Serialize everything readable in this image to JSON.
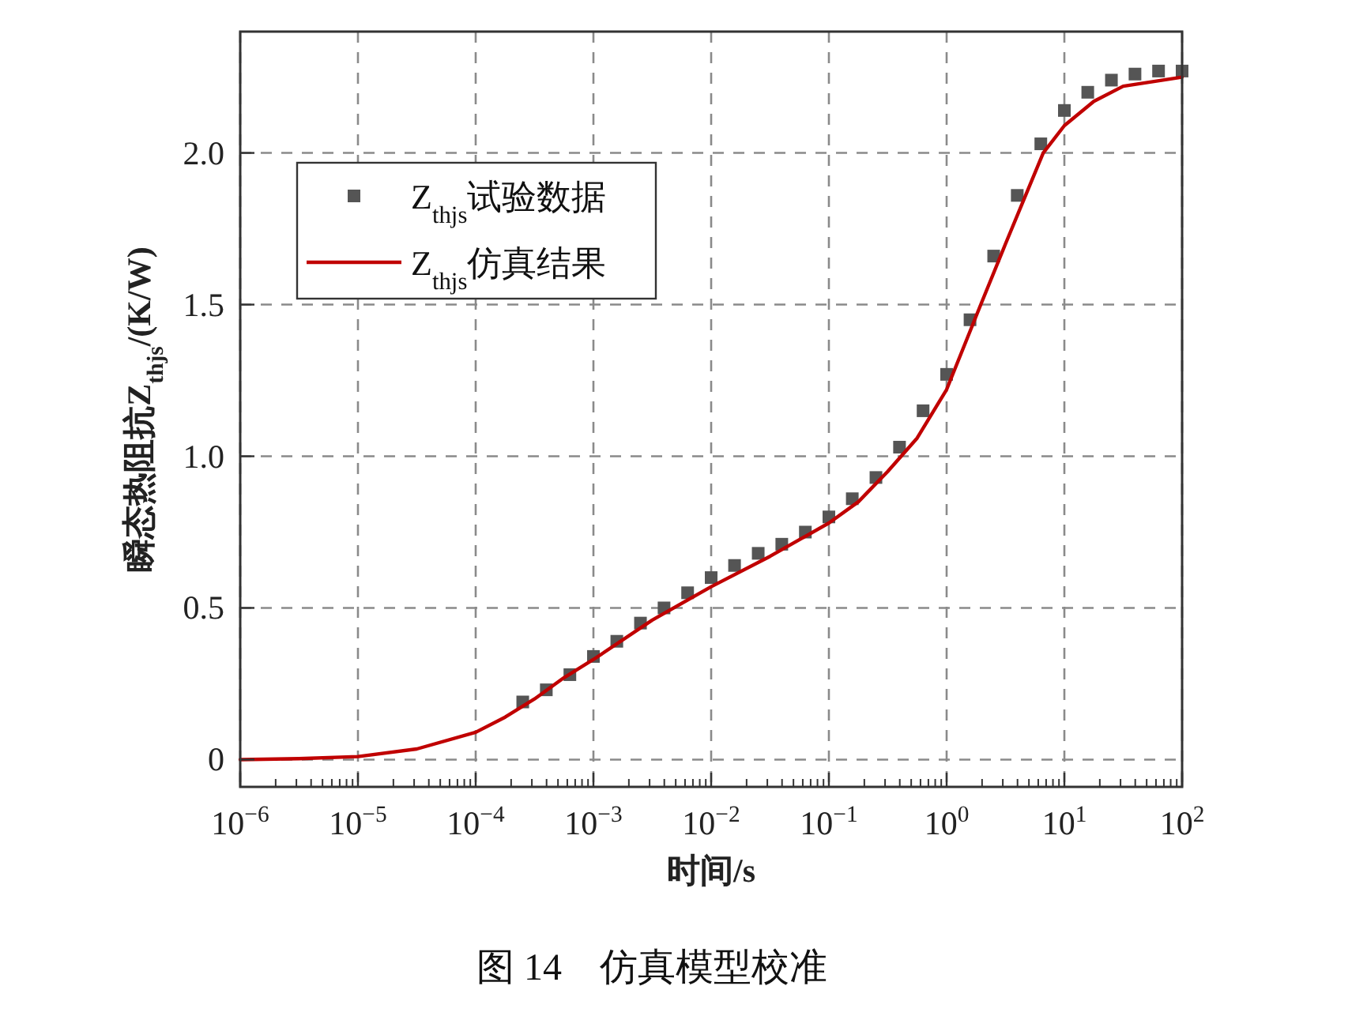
{
  "chart_data": {
    "type": "line",
    "xlabel": "时间/s",
    "ylabel": "瞬态热阻抗Z$_{thjs}$/(K/W)",
    "log": "x",
    "grid": true,
    "legend": "top left",
    "xlim": [
      1e-06,
      100
    ],
    "ylim": [
      -0.09,
      2.4
    ],
    "xticks": [
      {
        "value": 1e-06,
        "label": "10$^{−6}$"
      },
      {
        "value": 1e-05,
        "label": "10$^{−5}$"
      },
      {
        "value": 0.0001,
        "label": "10$^{−4}$"
      },
      {
        "value": 0.001,
        "label": "10$^{−3}$"
      },
      {
        "value": 0.01,
        "label": "10$^{−2}$"
      },
      {
        "value": 0.1,
        "label": "10$^{−1}$"
      },
      {
        "value": 1,
        "label": "10$^{0}$"
      },
      {
        "value": 10,
        "label": "10$^{1}$"
      },
      {
        "value": 100,
        "label": "10$^{2}$"
      }
    ],
    "yticks": [
      0,
      0.5,
      {
        "value": 1,
        "label": "1.0"
      },
      1.5,
      {
        "value": 2,
        "label": "2.0"
      }
    ],
    "series": [
      {
        "name": "Z$_{thjs}$试验数据",
        "type": "scatter",
        "marker": "square",
        "color": "#555555",
        "x": [
          0.000251,
          0.000398,
          0.000631,
          0.001,
          0.00158,
          0.00251,
          0.00398,
          0.00631,
          0.01,
          0.0158,
          0.0251,
          0.0398,
          0.0631,
          0.1,
          0.158,
          0.251,
          0.398,
          0.631,
          1,
          1.58,
          2.51,
          3.98,
          6.31,
          10,
          15.8,
          25.1,
          39.8,
          63.1,
          100
        ],
        "values": [
          0.19,
          0.23,
          0.28,
          0.34,
          0.39,
          0.45,
          0.5,
          0.55,
          0.6,
          0.64,
          0.68,
          0.71,
          0.75,
          0.8,
          0.86,
          0.93,
          1.03,
          1.15,
          1.27,
          1.45,
          1.66,
          1.86,
          2.03,
          2.14,
          2.2,
          2.24,
          2.26,
          2.27,
          2.27
        ]
      },
      {
        "name": "Z$_{thjs}$仿真结果",
        "line_style": "solid",
        "color": "#c00000",
        "x": [
          1e-06,
          3.16e-06,
          1e-05,
          3.16e-05,
          0.0001,
          0.000178,
          0.000316,
          0.000562,
          0.001,
          0.00316,
          0.01,
          0.0316,
          0.1,
          0.178,
          0.316,
          0.562,
          1,
          1.95,
          3.16,
          6.61,
          10,
          17.8,
          31.6,
          100
        ],
        "values": [
          0,
          0.003,
          0.01,
          0.035,
          0.09,
          0.14,
          0.2,
          0.27,
          0.33,
          0.46,
          0.57,
          0.67,
          0.78,
          0.85,
          0.95,
          1.06,
          1.22,
          1.5,
          1.7,
          2.0,
          2.09,
          2.17,
          2.22,
          2.25
        ]
      }
    ],
    "annotations": [
      "图 14　仿真模型校准"
    ]
  }
}
